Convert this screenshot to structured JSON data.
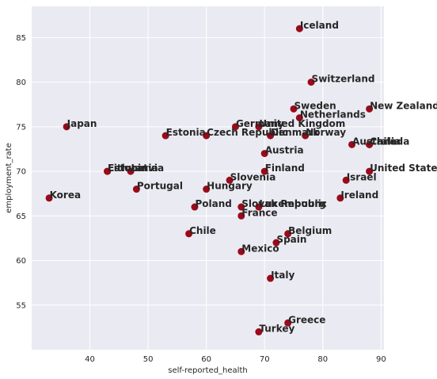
{
  "chart_data": {
    "type": "scatter",
    "xlabel": "self-reported_health",
    "ylabel": "employment_rate",
    "xlim": [
      30,
      90.5
    ],
    "ylim": [
      50,
      88.5
    ],
    "xticks": [
      40,
      50,
      60,
      70,
      80,
      90
    ],
    "yticks": [
      55,
      60,
      65,
      70,
      75,
      80,
      85
    ],
    "grid": true,
    "marker_color": "#9b0a1a",
    "background_color": "#eaeaf2",
    "points": [
      {
        "label": "Iceland",
        "x": 76,
        "y": 86
      },
      {
        "label": "Switzerland",
        "x": 78,
        "y": 80
      },
      {
        "label": "Sweden",
        "x": 75,
        "y": 77
      },
      {
        "label": "New Zealand",
        "x": 88,
        "y": 77
      },
      {
        "label": "Netherlands",
        "x": 76,
        "y": 76
      },
      {
        "label": "Germany",
        "x": 65,
        "y": 75
      },
      {
        "label": "United Kingdom",
        "x": 69,
        "y": 75
      },
      {
        "label": "Japan",
        "x": 36,
        "y": 75
      },
      {
        "label": "Estonia",
        "x": 53,
        "y": 74
      },
      {
        "label": "Czech Republic",
        "x": 60,
        "y": 74
      },
      {
        "label": "Denmark",
        "x": 71,
        "y": 74
      },
      {
        "label": "Norway",
        "x": 77,
        "y": 74
      },
      {
        "label": "Australia",
        "x": 85,
        "y": 73
      },
      {
        "label": "Canada",
        "x": 88,
        "y": 73
      },
      {
        "label": "Chile",
        "x": 88,
        "y": 73
      },
      {
        "label": "Austria",
        "x": 70,
        "y": 72
      },
      {
        "label": "Finland",
        "x": 70,
        "y": 70
      },
      {
        "label": "United States",
        "x": 88,
        "y": 70
      },
      {
        "label": "Israel",
        "x": 84,
        "y": 69
      },
      {
        "label": "Estonia",
        "x": 43,
        "y": 70
      },
      {
        "label": "Lithuania",
        "x": 43,
        "y": 70
      },
      {
        "label": "Latvia",
        "x": 47,
        "y": 70
      },
      {
        "label": "Slovenia",
        "x": 64,
        "y": 69
      },
      {
        "label": "Portugal",
        "x": 48,
        "y": 68
      },
      {
        "label": "Hungary",
        "x": 60,
        "y": 68
      },
      {
        "label": "Korea",
        "x": 33,
        "y": 67
      },
      {
        "label": "Ireland",
        "x": 83,
        "y": 67
      },
      {
        "label": "Poland",
        "x": 58,
        "y": 66
      },
      {
        "label": "Slovak Republic",
        "x": 66,
        "y": 66
      },
      {
        "label": "Luxembourg",
        "x": 69,
        "y": 66
      },
      {
        "label": "France",
        "x": 66,
        "y": 65
      },
      {
        "label": "Chile",
        "x": 57,
        "y": 63
      },
      {
        "label": "Belgium",
        "x": 74,
        "y": 63
      },
      {
        "label": "Spain",
        "x": 72,
        "y": 62
      },
      {
        "label": "Mexico",
        "x": 66,
        "y": 61
      },
      {
        "label": "Italy",
        "x": 71,
        "y": 58
      },
      {
        "label": "Greece",
        "x": 74,
        "y": 53
      },
      {
        "label": "Turkey",
        "x": 69,
        "y": 52
      }
    ]
  }
}
